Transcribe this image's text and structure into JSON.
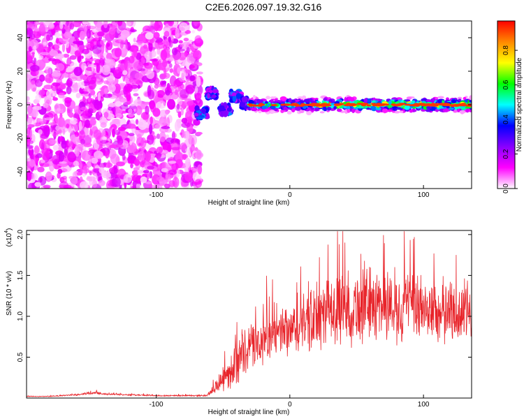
{
  "title": "C2E6.2026.097.19.32.G16",
  "chart_data": [
    {
      "type": "heatmap",
      "xlabel": "Height of straight line (km)",
      "ylabel": "Frequency (Hz)",
      "xlim": [
        -197,
        136
      ],
      "ylim": [
        -50,
        50
      ],
      "xticks": [
        -100,
        0,
        100
      ],
      "xtick_labels": [
        "-100",
        "0",
        "100"
      ],
      "yticks": [
        -40,
        -20,
        0,
        20,
        40
      ],
      "ytick_labels": [
        "-40",
        "-20",
        "0",
        "20",
        "40"
      ],
      "grid": false,
      "colorbar": {
        "label": "Normalized spectral amplitude",
        "range": [
          0,
          0.97
        ],
        "ticks": [
          0.0,
          0.2,
          0.4,
          0.6,
          0.8
        ],
        "tick_labels": [
          "0.0",
          "0.2",
          "0.4",
          "0.6",
          "0.8"
        ],
        "colors": [
          "#ffffff",
          "#ff00ff",
          "#8800ff",
          "#0000ff",
          "#00ffff",
          "#00ff00",
          "#ffff00",
          "#ff8800",
          "#ff0000"
        ]
      },
      "regions": [
        {
          "label": "noise",
          "x": [
            -197,
            -67
          ],
          "y": [
            -50,
            50
          ],
          "amplitude": 0.1
        },
        {
          "label": "fragments",
          "x": [
            -70,
            -30
          ],
          "y": [
            -12,
            12
          ],
          "amplitude": 0.3
        },
        {
          "label": "carrier",
          "x": [
            -30,
            136
          ],
          "y": [
            -3,
            3
          ],
          "amplitude": 0.9
        }
      ]
    },
    {
      "type": "line",
      "xlabel": "Height of straight line (km)",
      "ylabel": "SNR (10 * v/v)",
      "y_multiplier": "(x10",
      "y_multiplier_exp": "4",
      "y_multiplier_close": ")",
      "xlim": [
        -197,
        136
      ],
      "ylim": [
        0,
        2.05
      ],
      "xticks": [
        -100,
        0,
        100
      ],
      "xtick_labels": [
        "-100",
        "0",
        "100"
      ],
      "yticks": [
        0.5,
        1.0,
        1.5,
        2.0
      ],
      "ytick_labels": [
        "0.5",
        "1.0",
        "1.5",
        "2.0"
      ],
      "grid": false,
      "series": [
        {
          "color": "#e8242a",
          "x": [
            -197,
            -180,
            -160,
            -145,
            -140,
            -120,
            -100,
            -80,
            -62,
            -55,
            -45,
            -40,
            -30,
            -20,
            -10,
            0,
            10,
            20,
            30,
            40,
            50,
            60,
            70,
            80,
            90,
            100,
            110,
            120,
            130,
            136
          ],
          "y": [
            0.02,
            0.02,
            0.04,
            0.07,
            0.05,
            0.04,
            0.03,
            0.03,
            0.03,
            0.15,
            0.3,
            0.45,
            0.6,
            0.7,
            0.75,
            0.8,
            0.9,
            0.95,
            1.05,
            1.1,
            1.1,
            1.15,
            1.15,
            1.1,
            1.1,
            1.1,
            1.05,
            1.05,
            1.05,
            1.05
          ],
          "spread": [
            0.005,
            0.005,
            0.01,
            0.02,
            0.01,
            0.01,
            0.01,
            0.01,
            0.01,
            0.1,
            0.2,
            0.3,
            0.3,
            0.32,
            0.32,
            0.34,
            0.4,
            0.42,
            0.45,
            0.48,
            0.5,
            0.48,
            0.46,
            0.45,
            0.44,
            0.44,
            0.42,
            0.42,
            0.42,
            0.42
          ]
        }
      ]
    }
  ]
}
